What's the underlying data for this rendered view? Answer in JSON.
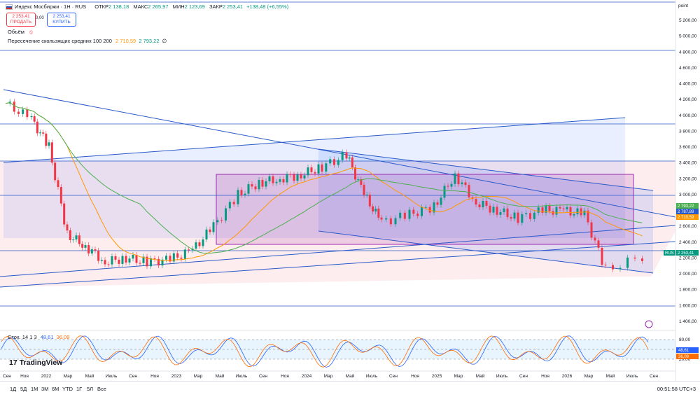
{
  "header": {
    "symbol": "Индекс Мосбиржи · 1Н · RUS",
    "open_label": "ОТКР",
    "open": "2 138,18",
    "high_label": "МАКС",
    "high": "2 265,97",
    "low_label": "МИН",
    "low": "2 123,69",
    "close_label": "ЗАКР",
    "close": "2 253,41",
    "change": "+138,48 (+6,55%)"
  },
  "trade": {
    "sell_price": "2 253,41",
    "sell_label": "ПРОДАТЬ",
    "spread": "0,00",
    "buy_price": "2 253,41",
    "buy_label": "КУПИТЬ"
  },
  "indicators": {
    "volume_label": "Объём",
    "ma_label": "Пересечение скользящих средних 100 200",
    "ma1": "2 710,59",
    "ma2": "2 793,22",
    "ma3": "∅"
  },
  "oscillator": {
    "label": "Стох. 14 1 3",
    "k": "48,61",
    "d": "36,09",
    "ticks": [
      "80,00",
      "50,00",
      "20,00"
    ]
  },
  "price_axis": {
    "unit": "point",
    "ticks": [
      "5 200,00",
      "5 000,00",
      "4 800,00",
      "4 600,00",
      "4 400,00",
      "4 200,00",
      "4 000,00",
      "3 800,00",
      "3 600,00",
      "3 400,00",
      "3 200,00",
      "3 000,00",
      "2 800,00",
      "2 600,00",
      "2 400,00",
      "2 200,00",
      "2 000,00",
      "1 800,00",
      "1 600,00",
      "1 400,00"
    ],
    "tags": {
      "ma2": "2 793,22",
      "ma1_line": "2 787,89",
      "ma1": "2 710,59",
      "rus_label": "RUS",
      "last": "2 253,41"
    }
  },
  "time_axis": {
    "labels": [
      "Сен",
      "Ноя",
      "2022",
      "Мар",
      "Май",
      "Июль",
      "Сен",
      "Ноя",
      "2023",
      "Мар",
      "Май",
      "Июль",
      "Сен",
      "Ноя",
      "2024",
      "Мар",
      "Май",
      "Июль",
      "Сен",
      "Ноя",
      "2025",
      "Мар",
      "Май",
      "Июль",
      "Сен",
      "Ноя",
      "2026",
      "Мар",
      "Май",
      "Июль",
      "Сен"
    ]
  },
  "brand": {
    "name": "TradingView"
  },
  "timeframes": [
    "1Д",
    "5Д",
    "1М",
    "3М",
    "6М",
    "YTD",
    "1Г",
    "5Л",
    "Все"
  ],
  "clock": "00:51:58 UTC+3",
  "colors": {
    "up": "#089981",
    "down": "#f23645",
    "trend": "#2a59c9",
    "ma_fast": "#ff9800",
    "ma_slow": "#4caf50",
    "stoch_k": "#2962ff",
    "stoch_d": "#ff6d00"
  },
  "chart_data": {
    "type": "candlestick",
    "title": "Индекс Мосбиржи · 1Н · RUS",
    "ylabel": "point",
    "ylim": [
      1300,
      5300
    ],
    "x": [
      "Сен 2021",
      "Ноя 2021",
      "2022",
      "Мар 2022",
      "Май 2022",
      "Июль 2022",
      "Сен 2022",
      "Ноя 2022",
      "2023",
      "Мар 2023",
      "Май 2023",
      "Июль 2023",
      "Сен 2023",
      "Ноя 2023",
      "2024",
      "Мар 2024",
      "Май 2024",
      "Июль 2024",
      "Сен 2024",
      "Ноя 2024",
      "2025",
      "Мар 2025",
      "Май 2025",
      "Июль 2025",
      "Сен 2025",
      "Ноя 2025",
      "2026",
      "Мар 2026",
      "Май 2026",
      "Июль 2026"
    ],
    "close": [
      4150,
      3950,
      3600,
      2500,
      2350,
      2150,
      2200,
      2150,
      2180,
      2300,
      2600,
      3000,
      3150,
      3200,
      3250,
      3350,
      3500,
      3000,
      2650,
      2750,
      2850,
      3250,
      2900,
      2800,
      2700,
      2800,
      2800,
      2750,
      2050,
      2253.41
    ],
    "series": [
      {
        "name": "Пересечение скользящих средних 100 200 (100)",
        "last": 2710.59
      },
      {
        "name": "Пересечение скользящих средних 100 200 (200)",
        "last": 2793.22
      }
    ]
  }
}
